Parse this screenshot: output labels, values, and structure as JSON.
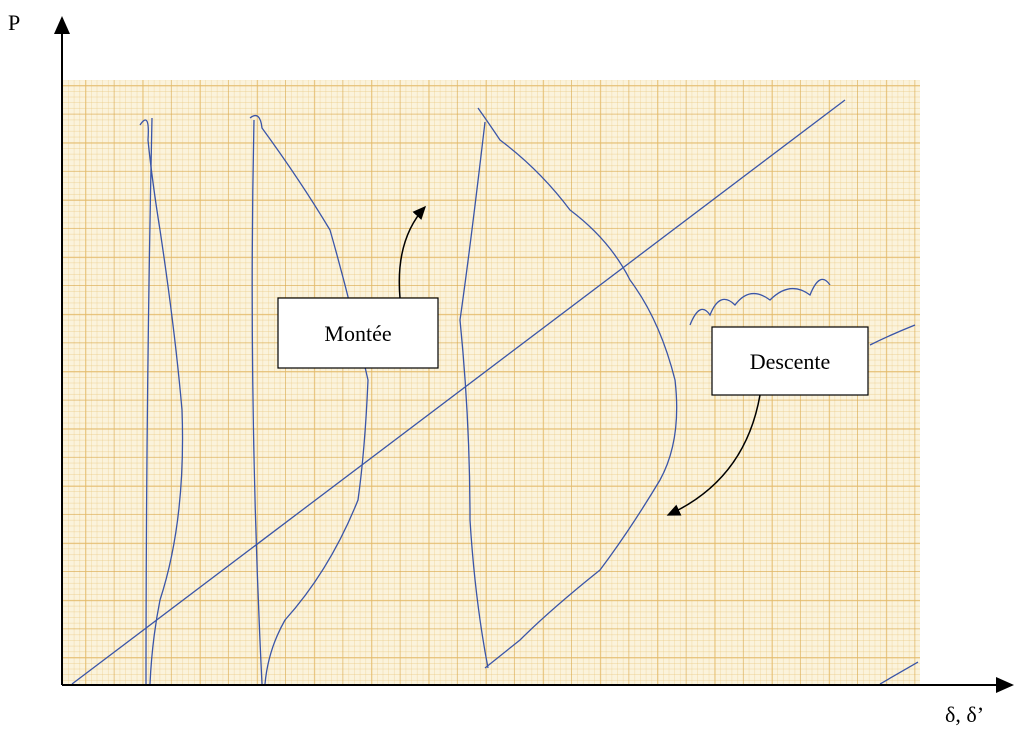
{
  "axes": {
    "y_label": "P",
    "x_label": "δ, δ’"
  },
  "annotations": [
    {
      "label": "Montée"
    },
    {
      "label": "Descente"
    }
  ]
}
